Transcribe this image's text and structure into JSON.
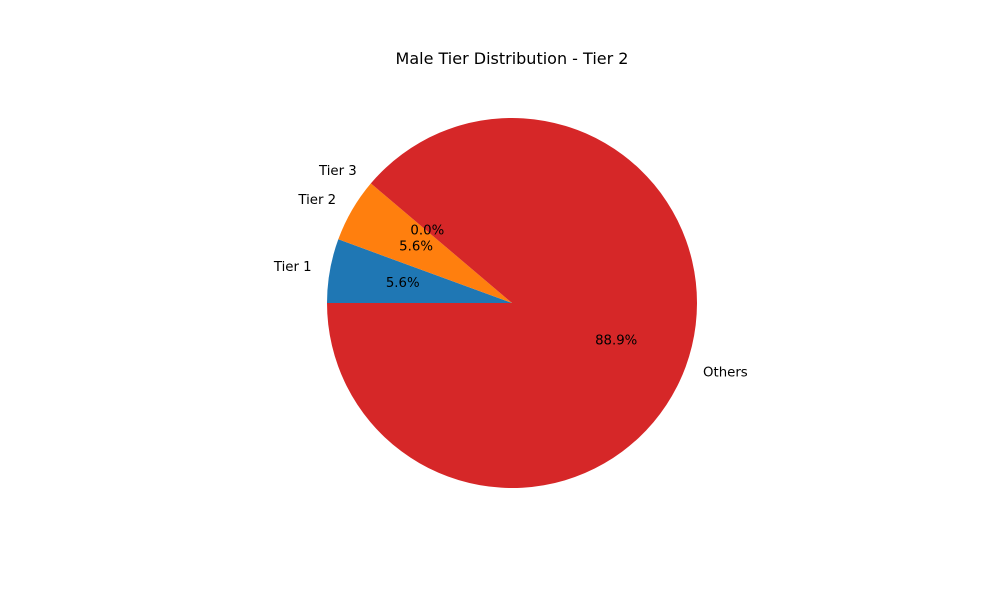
{
  "chart_data": {
    "type": "pie",
    "title": "Male Tier Distribution - Tier 2",
    "labels": [
      "Tier 1",
      "Tier 2",
      "Tier 3",
      "Others"
    ],
    "values": [
      5.6,
      5.6,
      0.0,
      88.9
    ],
    "value_labels": [
      "5.6%",
      "5.6%",
      "0.0%",
      "88.9%"
    ],
    "colors": [
      "#1f77b4",
      "#ff7f0e",
      "#2ca02c",
      "#d62728"
    ],
    "start_angle_deg": 180,
    "direction": "clockwise",
    "legend": "none"
  }
}
